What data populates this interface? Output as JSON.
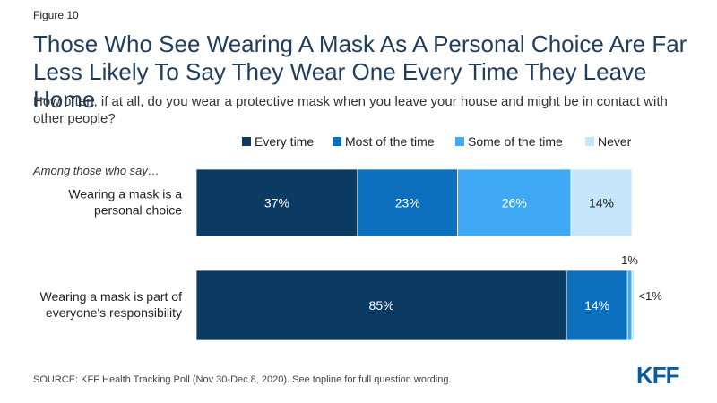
{
  "figure_label": "Figure 10",
  "title": "Those Who See Wearing A Mask As A Personal Choice Are Far Less Likely To Say They Wear One Every Time They Leave Home",
  "subtitle": "How often, if at all, do you wear a protective mask when you leave your house and might be in contact with other people?",
  "group_label": "Among those who say…",
  "source": "SOURCE: KFF Health Tracking Poll (Nov 30-Dec 8, 2020). See topline for full question wording.",
  "logo_text": "KFF",
  "chart_data": {
    "type": "bar",
    "orientation": "horizontal",
    "stacked": true,
    "categories": [
      [
        "Wearing a mask is a",
        "personal choice"
      ],
      [
        "Wearing a mask is part of",
        "everyone's responsibility"
      ]
    ],
    "series": [
      {
        "name": "Every time",
        "color": "#0b3b63",
        "values": [
          37,
          85
        ],
        "labels": [
          "37%",
          "85%"
        ]
      },
      {
        "name": "Most of the time",
        "color": "#0b6fbd",
        "values": [
          23,
          14
        ],
        "labels": [
          "23%",
          "14%"
        ]
      },
      {
        "name": "Some of the time",
        "color": "#3fa9f5",
        "values": [
          26,
          1
        ],
        "labels": [
          "26%",
          "1%"
        ]
      },
      {
        "name": "Never",
        "color": "#c5e6fb",
        "values": [
          14,
          0.5
        ],
        "labels": [
          "14%",
          "<1%"
        ]
      }
    ],
    "xlim": [
      0,
      100
    ],
    "legend_position": "top",
    "grid": false
  }
}
